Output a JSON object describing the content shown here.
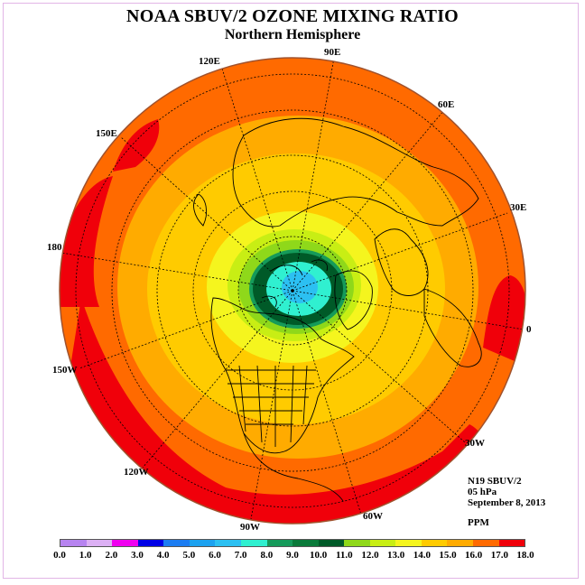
{
  "header": {
    "title": "NOAA SBUV/2 OZONE MIXING RATIO",
    "subtitle": "Northern Hemisphere"
  },
  "longitude_labels": [
    "90E",
    "60E",
    "30E",
    "0",
    "30W",
    "60W",
    "90W",
    "120W",
    "150W",
    "180",
    "150E",
    "120E"
  ],
  "info": {
    "instrument": "N19 SBUV/2",
    "level": "05 hPa",
    "date": "September 8, 2013",
    "units": "PPM"
  },
  "colorbar": {
    "ticks": [
      "0.0",
      "1.0",
      "2.0",
      "3.0",
      "4.0",
      "5.0",
      "6.0",
      "7.0",
      "8.0",
      "9.0",
      "10.0",
      "11.0",
      "12.0",
      "13.0",
      "14.0",
      "15.0",
      "16.0",
      "17.0",
      "18.0"
    ],
    "colors": [
      "#b784f0",
      "#dcb0f4",
      "#f000f0",
      "#0000e6",
      "#1c7df2",
      "#1ca2f0",
      "#2cc0f2",
      "#30f0d0",
      "#159a5a",
      "#0a7a3a",
      "#005a28",
      "#8fd81a",
      "#c8ee14",
      "#f5f51e",
      "#ffcb00",
      "#ffab00",
      "#ff6a00",
      "#f0000a",
      "#8b5a3c"
    ]
  },
  "map_colors": {
    "red": "#f0000a",
    "orange_dark": "#ff6a00",
    "orange": "#ffab00",
    "amber": "#ffcb00",
    "yellow": "#f5f51e",
    "lime": "#c8ee14",
    "green_light": "#8fd81a",
    "green_mid": "#159a5a",
    "green_dark": "#005a28",
    "cyan": "#30f0d0",
    "blue_light": "#2cc0f2"
  }
}
